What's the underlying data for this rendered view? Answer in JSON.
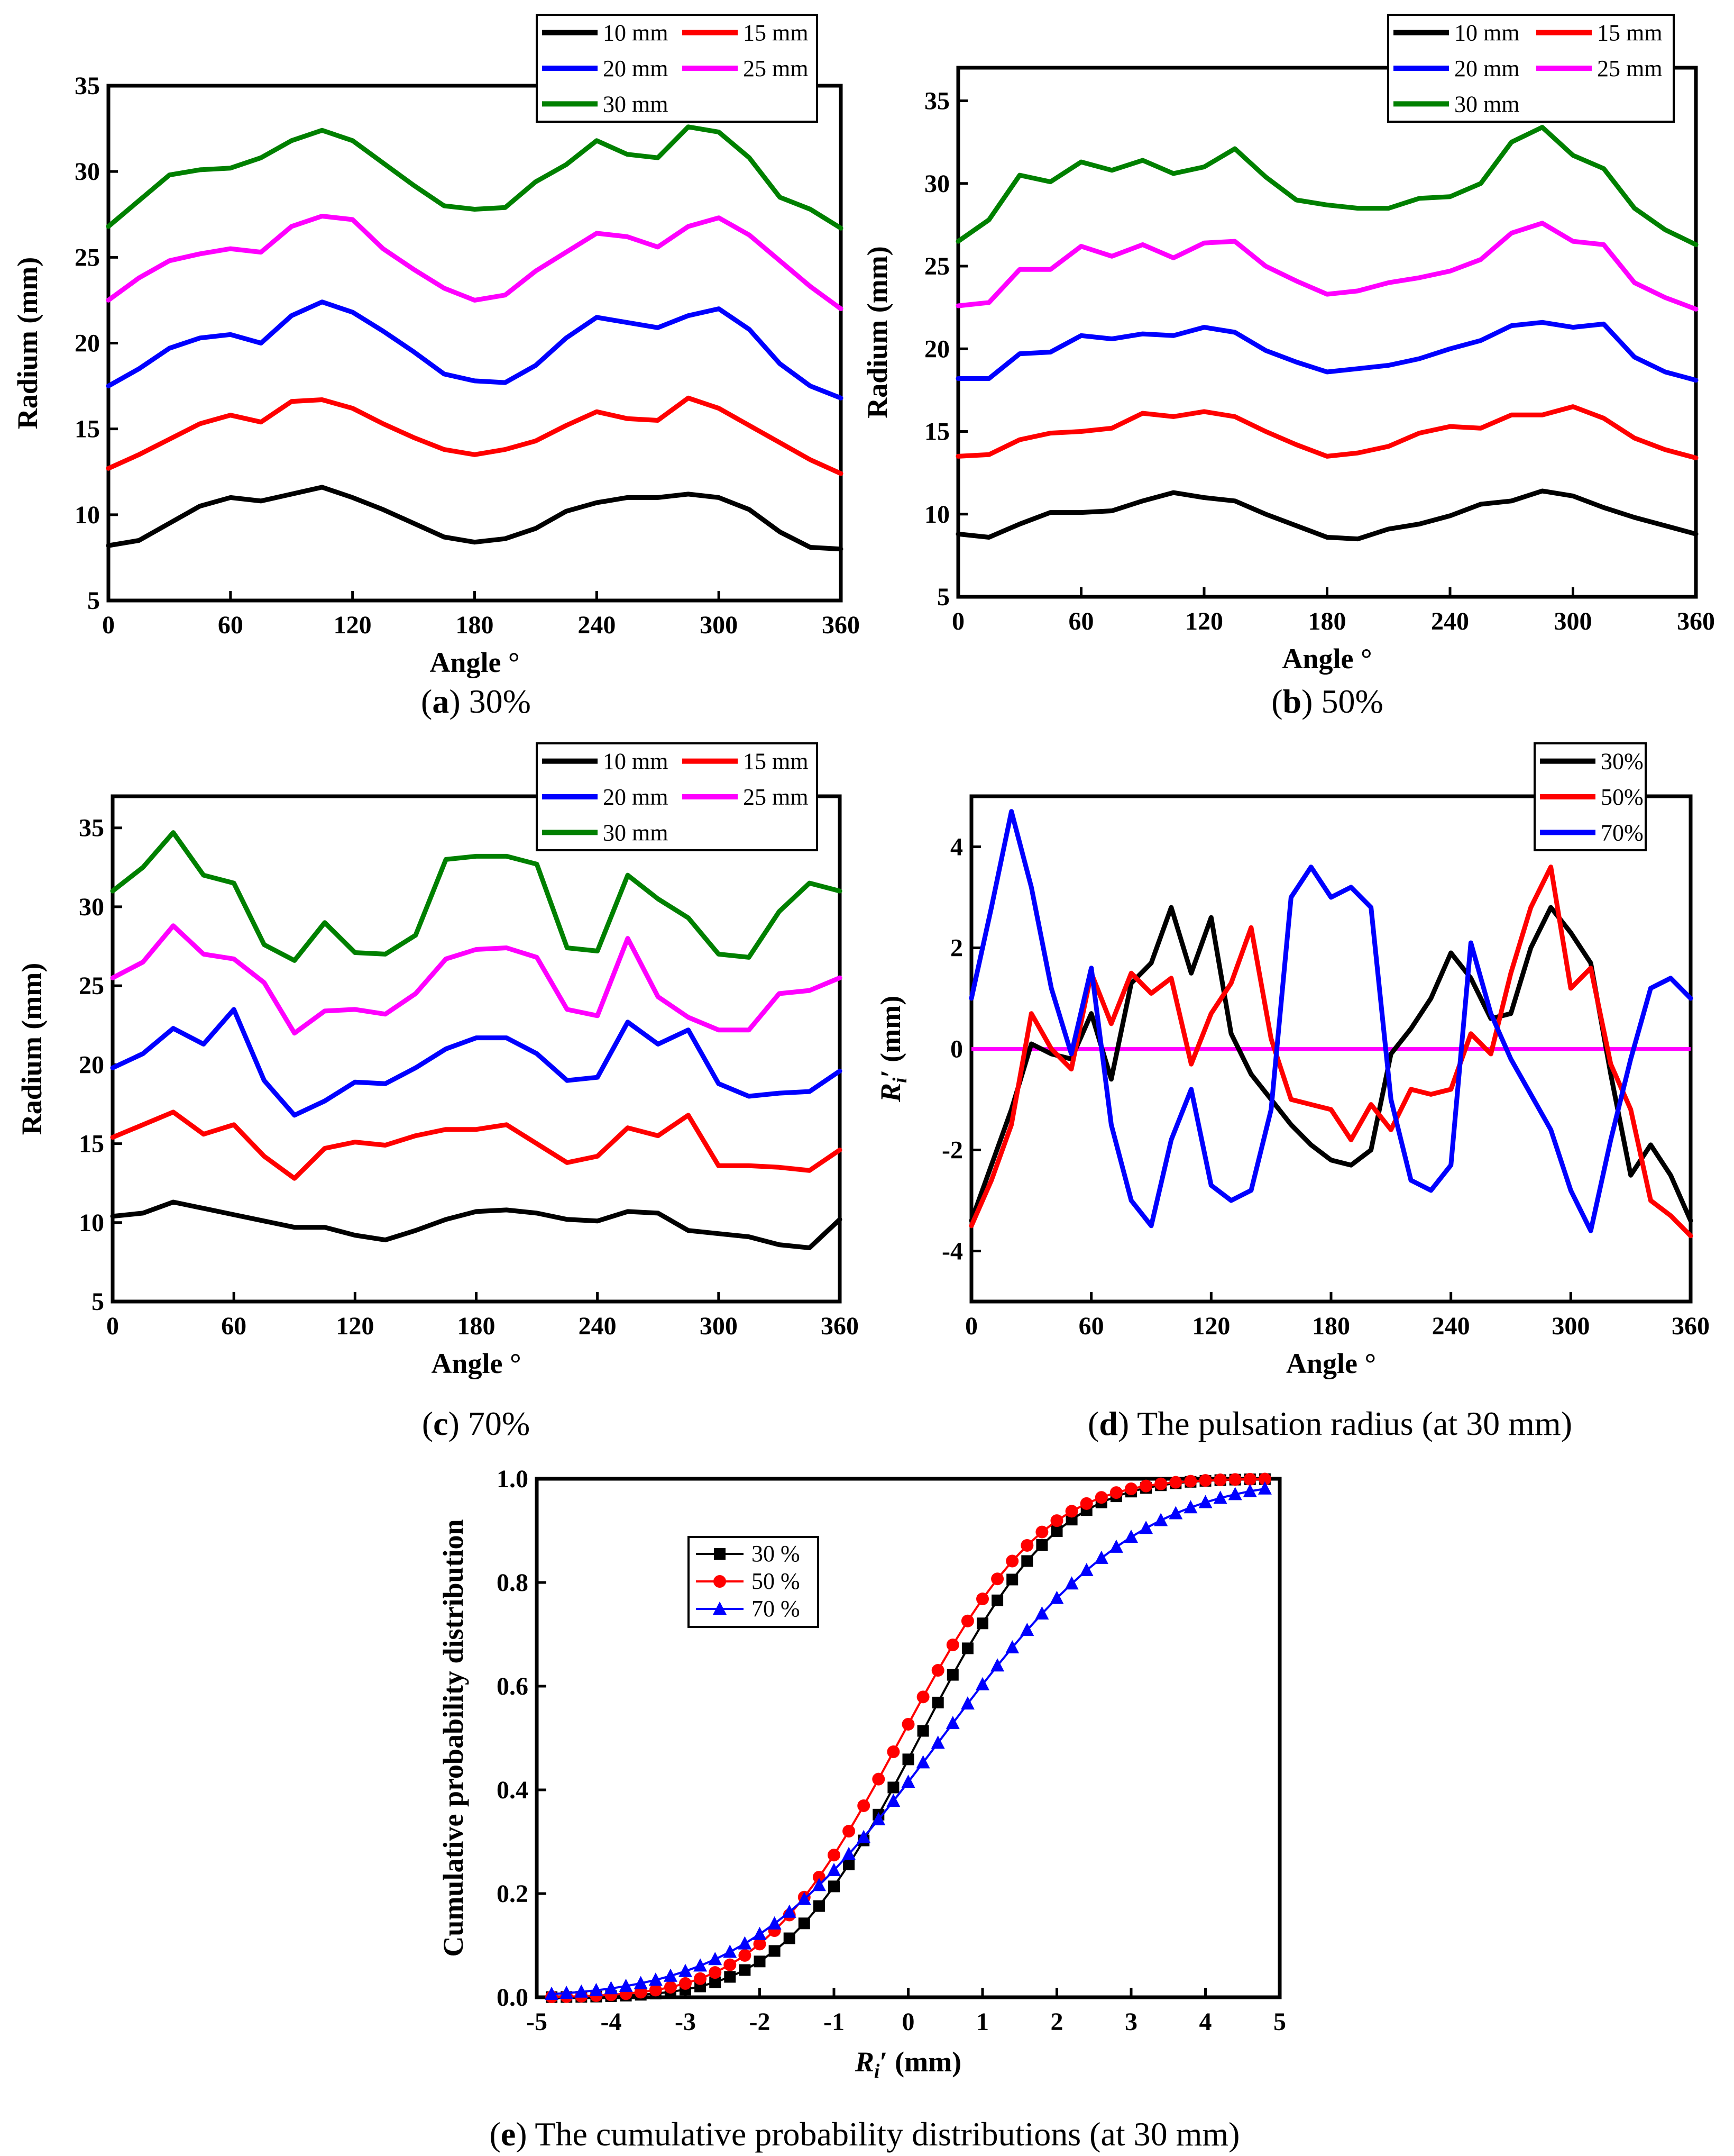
{
  "chart_data": [
    {
      "id": "a",
      "type": "line",
      "caption": {
        "letter": "a",
        "text": " 30%"
      },
      "xlabel": "Angle °",
      "ylabel": "Radium (mm)",
      "xlim": [
        0,
        360
      ],
      "ylim": [
        5,
        35
      ],
      "xticks": [
        0,
        60,
        120,
        180,
        240,
        300,
        360
      ],
      "yticks": [
        5,
        10,
        15,
        20,
        25,
        30,
        35
      ],
      "x": [
        0,
        15,
        30,
        45,
        60,
        75,
        90,
        105,
        120,
        135,
        150,
        165,
        180,
        195,
        210,
        225,
        240,
        255,
        270,
        285,
        300,
        315,
        330,
        345,
        360
      ],
      "series": [
        {
          "name": "10 mm",
          "color": "#000000",
          "values": [
            8.2,
            8.5,
            9.5,
            10.5,
            11,
            10.8,
            11.2,
            11.6,
            11,
            10.3,
            9.5,
            8.7,
            8.4,
            8.6,
            9.2,
            10.2,
            10.7,
            11,
            11,
            11.2,
            11,
            10.3,
            9,
            8.1,
            8
          ]
        },
        {
          "name": "15 mm",
          "color": "#ff0000",
          "values": [
            12.7,
            13.5,
            14.4,
            15.3,
            15.8,
            15.4,
            16.6,
            16.7,
            16.2,
            15.3,
            14.5,
            13.8,
            13.5,
            13.8,
            14.3,
            15.2,
            16,
            15.6,
            15.5,
            16.8,
            16.2,
            15.2,
            14.2,
            13.2,
            12.4
          ]
        },
        {
          "name": "20 mm",
          "color": "#0000ff",
          "values": [
            17.5,
            18.5,
            19.7,
            20.3,
            20.5,
            20,
            21.6,
            22.4,
            21.8,
            20.7,
            19.5,
            18.2,
            17.8,
            17.7,
            18.7,
            20.3,
            21.5,
            21.2,
            20.9,
            21.6,
            22,
            20.8,
            18.8,
            17.5,
            16.8
          ]
        },
        {
          "name": "25 mm",
          "color": "#ff00ff",
          "values": [
            22.5,
            23.8,
            24.8,
            25.2,
            25.5,
            25.3,
            26.8,
            27.4,
            27.2,
            25.5,
            24.3,
            23.2,
            22.5,
            22.8,
            24.2,
            25.3,
            26.4,
            26.2,
            25.6,
            26.8,
            27.3,
            26.3,
            24.8,
            23.3,
            22
          ]
        },
        {
          "name": "30 mm",
          "color": "#008000",
          "values": [
            26.8,
            28.3,
            29.8,
            30.1,
            30.2,
            30.8,
            31.8,
            32.4,
            31.8,
            30.5,
            29.2,
            28,
            27.8,
            27.9,
            29.4,
            30.4,
            31.8,
            31,
            30.8,
            32.6,
            32.3,
            30.8,
            28.5,
            27.8,
            26.7
          ]
        }
      ]
    },
    {
      "id": "b",
      "type": "line",
      "caption": {
        "letter": "b",
        "text": " 50%"
      },
      "xlabel": "Angle °",
      "ylabel": "Radium (mm)",
      "xlim": [
        0,
        360
      ],
      "ylim": [
        5,
        37
      ],
      "xticks": [
        0,
        60,
        120,
        180,
        240,
        300,
        360
      ],
      "yticks": [
        5,
        10,
        15,
        20,
        25,
        30,
        35
      ],
      "x": [
        0,
        15,
        30,
        45,
        60,
        75,
        90,
        105,
        120,
        135,
        150,
        165,
        180,
        195,
        210,
        225,
        240,
        255,
        270,
        285,
        300,
        315,
        330,
        345,
        360
      ],
      "series": [
        {
          "name": "10 mm",
          "color": "#000000",
          "values": [
            8.8,
            8.6,
            9.4,
            10.1,
            10.1,
            10.2,
            10.8,
            11.3,
            11,
            10.8,
            10,
            9.3,
            8.6,
            8.5,
            9.1,
            9.4,
            9.9,
            10.6,
            10.8,
            11.4,
            11.1,
            10.4,
            9.8,
            9.3,
            8.8
          ]
        },
        {
          "name": "15 mm",
          "color": "#ff0000",
          "values": [
            13.5,
            13.6,
            14.5,
            14.9,
            15,
            15.2,
            16.1,
            15.9,
            16.2,
            15.9,
            15,
            14.2,
            13.5,
            13.7,
            14.1,
            14.9,
            15.3,
            15.2,
            16,
            16,
            16.5,
            15.8,
            14.6,
            13.9,
            13.4
          ]
        },
        {
          "name": "20 mm",
          "color": "#0000ff",
          "values": [
            18.2,
            18.2,
            19.7,
            19.8,
            20.8,
            20.6,
            20.9,
            20.8,
            21.3,
            21,
            19.9,
            19.2,
            18.6,
            18.8,
            19,
            19.4,
            20,
            20.5,
            21.4,
            21.6,
            21.3,
            21.5,
            19.5,
            18.6,
            18.1
          ]
        },
        {
          "name": "25 mm",
          "color": "#ff00ff",
          "values": [
            22.6,
            22.8,
            24.8,
            24.8,
            26.2,
            25.6,
            26.3,
            25.5,
            26.4,
            26.5,
            25,
            24.1,
            23.3,
            23.5,
            24,
            24.3,
            24.7,
            25.4,
            27,
            27.6,
            26.5,
            26.3,
            24,
            23.1,
            22.4
          ]
        },
        {
          "name": "30 mm",
          "color": "#008000",
          "values": [
            26.5,
            27.8,
            30.5,
            30.1,
            31.3,
            30.8,
            31.4,
            30.6,
            31,
            32.1,
            30.4,
            29,
            28.7,
            28.5,
            28.5,
            29.1,
            29.2,
            30,
            32.5,
            33.4,
            31.7,
            30.9,
            28.5,
            27.2,
            26.3
          ]
        }
      ]
    },
    {
      "id": "c",
      "type": "line",
      "caption": {
        "letter": "c",
        "text": " 70%"
      },
      "xlabel": "Angle °",
      "ylabel": "Radium (mm)",
      "xlim": [
        0,
        360
      ],
      "ylim": [
        5,
        37
      ],
      "xticks": [
        0,
        60,
        120,
        180,
        240,
        300,
        360
      ],
      "yticks": [
        5,
        10,
        15,
        20,
        25,
        30,
        35
      ],
      "x": [
        0,
        15,
        30,
        45,
        60,
        75,
        90,
        105,
        120,
        135,
        150,
        165,
        180,
        195,
        210,
        225,
        240,
        255,
        270,
        285,
        300,
        315,
        330,
        345,
        360
      ],
      "series": [
        {
          "name": "10 mm",
          "color": "#000000",
          "values": [
            10.4,
            10.6,
            11.3,
            10.9,
            10.5,
            10.1,
            9.7,
            9.7,
            9.2,
            8.9,
            9.5,
            10.2,
            10.7,
            10.8,
            10.6,
            10.2,
            10.1,
            10.7,
            10.6,
            9.5,
            9.3,
            9.1,
            8.6,
            8.4,
            10.2
          ]
        },
        {
          "name": "15 mm",
          "color": "#ff0000",
          "values": [
            15.4,
            16.2,
            17,
            15.6,
            16.2,
            14.2,
            12.8,
            14.7,
            15.1,
            14.9,
            15.5,
            15.9,
            15.9,
            16.2,
            15,
            13.8,
            14.2,
            16,
            15.5,
            16.8,
            13.6,
            13.6,
            13.5,
            13.3,
            14.6
          ]
        },
        {
          "name": "20 mm",
          "color": "#0000ff",
          "values": [
            19.8,
            20.7,
            22.3,
            21.3,
            23.5,
            19,
            16.8,
            17.7,
            18.9,
            18.8,
            19.8,
            21,
            21.7,
            21.7,
            20.7,
            19,
            19.2,
            22.7,
            21.3,
            22.2,
            18.8,
            18,
            18.2,
            18.3,
            19.6
          ]
        },
        {
          "name": "25 mm",
          "color": "#ff00ff",
          "values": [
            25.5,
            26.5,
            28.8,
            27,
            26.7,
            25.2,
            22,
            23.4,
            23.5,
            23.2,
            24.5,
            26.7,
            27.3,
            27.4,
            26.8,
            23.5,
            23.1,
            28,
            24.3,
            23,
            22.2,
            22.2,
            24.5,
            24.7,
            25.5
          ]
        },
        {
          "name": "30 mm",
          "color": "#008000",
          "values": [
            31,
            32.5,
            34.7,
            32,
            31.5,
            27.6,
            26.6,
            29,
            27.1,
            27,
            28.2,
            33,
            33.2,
            33.2,
            32.7,
            27.4,
            27.2,
            32,
            30.5,
            29.3,
            27,
            26.8,
            29.7,
            31.5,
            31
          ]
        }
      ]
    },
    {
      "id": "d",
      "type": "line",
      "caption": {
        "letter": "d",
        "text": " The pulsation radius (at 30 mm)"
      },
      "xlabel": "Angle °",
      "ylabel_main": "R",
      "ylabel_sub": "i",
      "ylabel_rest": "′ (mm)",
      "xlim": [
        0,
        360
      ],
      "ylim": [
        -5,
        5
      ],
      "xticks": [
        0,
        60,
        120,
        180,
        240,
        300,
        360
      ],
      "yticks": [
        -4,
        -2,
        0,
        2,
        4
      ],
      "zero_line_color": "#ff00ff",
      "x": [
        0,
        10,
        20,
        30,
        40,
        50,
        60,
        70,
        80,
        90,
        100,
        110,
        120,
        130,
        140,
        150,
        160,
        170,
        180,
        190,
        200,
        210,
        220,
        230,
        240,
        250,
        260,
        270,
        280,
        290,
        300,
        310,
        320,
        330,
        340,
        350,
        360
      ],
      "series": [
        {
          "name": "30%",
          "color": "#000000",
          "values": [
            -3.4,
            -2.3,
            -1.2,
            0.1,
            -0.1,
            -0.2,
            0.7,
            -0.6,
            1.3,
            1.7,
            2.8,
            1.5,
            2.6,
            0.3,
            -0.5,
            -1,
            -1.5,
            -1.9,
            -2.2,
            -2.3,
            -2,
            -0.1,
            0.4,
            1,
            1.9,
            1.4,
            0.6,
            0.7,
            2,
            2.8,
            2.3,
            1.7,
            -0.5,
            -2.5,
            -1.9,
            -2.5,
            -3.4
          ]
        },
        {
          "name": "50%",
          "color": "#ff0000",
          "values": [
            -3.5,
            -2.6,
            -1.5,
            0.7,
            0,
            -0.4,
            1.5,
            0.5,
            1.5,
            1.1,
            1.4,
            -0.3,
            0.7,
            1.3,
            2.4,
            0.2,
            -1,
            -1.1,
            -1.2,
            -1.8,
            -1.1,
            -1.6,
            -0.8,
            -0.9,
            -0.8,
            0.3,
            -0.1,
            1.5,
            2.8,
            3.6,
            1.2,
            1.6,
            -0.3,
            -1.2,
            -3,
            -3.3,
            -3.7
          ]
        },
        {
          "name": "70%",
          "color": "#0000ff",
          "values": [
            1,
            2.8,
            4.7,
            3.2,
            1.2,
            -0.1,
            1.6,
            -1.5,
            -3,
            -3.5,
            -1.8,
            -0.8,
            -2.7,
            -3,
            -2.8,
            -1.2,
            3,
            3.6,
            3,
            3.2,
            2.8,
            -1,
            -2.6,
            -2.8,
            -2.3,
            2.1,
            0.7,
            -0.2,
            -0.9,
            -1.6,
            -2.8,
            -3.6,
            -1.8,
            -0.2,
            1.2,
            1.4,
            1
          ]
        }
      ]
    },
    {
      "id": "e",
      "type": "line",
      "caption": {
        "letter": "e",
        "text": " The cumulative probability distributions (at 30 mm)"
      },
      "xlabel_main": "R",
      "xlabel_sub": "i",
      "xlabel_rest": "′ (mm)",
      "ylabel": "Cumulative probability distribution",
      "xlim": [
        -5,
        5
      ],
      "ylim": [
        0,
        1
      ],
      "xticks": [
        -5,
        -4,
        -3,
        -2,
        -1,
        0,
        1,
        2,
        3,
        4,
        5
      ],
      "yticks": [
        0.0,
        0.2,
        0.4,
        0.6,
        0.8,
        1.0
      ],
      "ytick_labels": [
        "0.0",
        "0.2",
        "0.4",
        "0.6",
        "0.8",
        "1.0"
      ],
      "series": [
        {
          "name": "30 %",
          "color": "#000000",
          "marker": "square",
          "mean": 0.15,
          "sd": 1.45
        },
        {
          "name": "50 %",
          "color": "#ff0000",
          "marker": "circle",
          "mean": -0.1,
          "sd": 1.5
        },
        {
          "name": "70 %",
          "color": "#0000ff",
          "marker": "triangle",
          "mean": 0.45,
          "sd": 2.1
        }
      ]
    }
  ]
}
